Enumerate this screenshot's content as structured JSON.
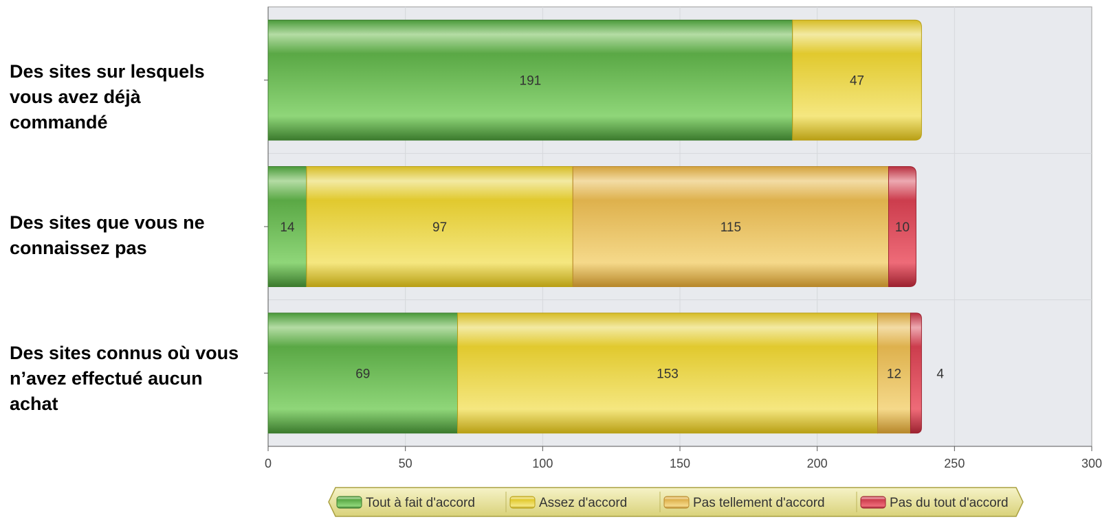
{
  "chart_data": {
    "type": "bar",
    "orientation": "horizontal",
    "stacked": true,
    "categories": [
      "Des sites sur lesquels vous avez déjà commandé",
      "Des sites que vous ne connaissez pas",
      "Des sites connus où vous n’avez effectué aucun achat"
    ],
    "series": [
      {
        "name": "Tout à fait d'accord",
        "values": [
          191,
          14,
          69
        ],
        "color": "#5fb84a"
      },
      {
        "name": "Assez d'accord",
        "values": [
          47,
          97,
          153
        ],
        "color": "#e8d13a"
      },
      {
        "name": "Pas tellement d'accord",
        "values": [
          0,
          115,
          12
        ],
        "color": "#e3b550"
      },
      {
        "name": "Pas du tout d'accord",
        "values": [
          0,
          10,
          4
        ],
        "color": "#d6404f"
      }
    ],
    "xlim": [
      0,
      300
    ],
    "xticks": [
      "0",
      "50",
      "100",
      "150",
      "200",
      "250",
      "300"
    ],
    "grid": true,
    "legend_position": "bottom"
  }
}
